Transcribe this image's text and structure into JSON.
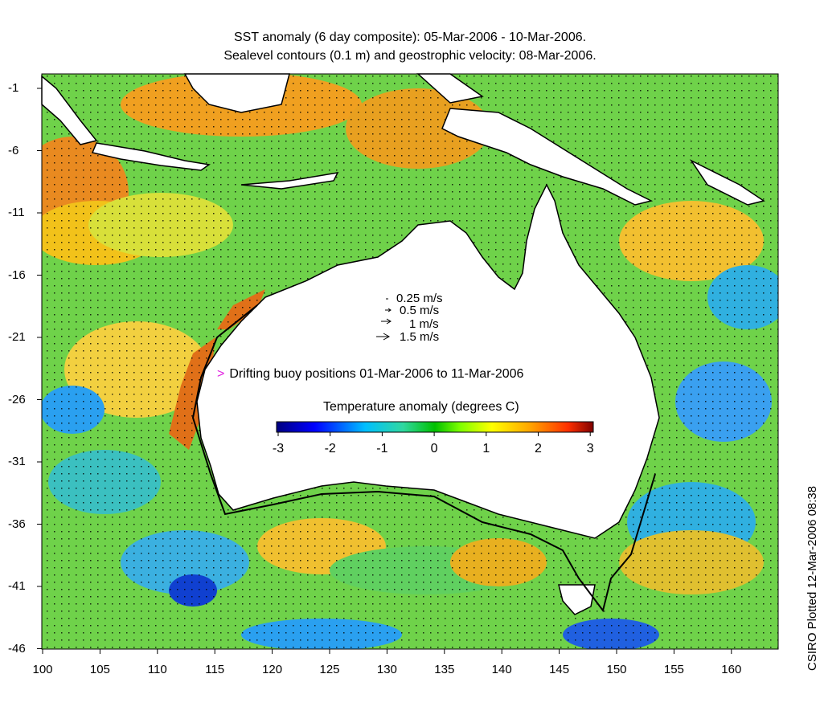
{
  "title_line1": "SST anomaly (6 day composite): 05-Mar-2006 - 10-Mar-2006.",
  "title_line2": "Sealevel contours (0.1 m) and geostrophic velocity: 08-Mar-2006.",
  "y_ticks": [
    "-1",
    "-6",
    "-11",
    "-16",
    "-21",
    "-26",
    "-31",
    "-36",
    "-41",
    "-46"
  ],
  "x_ticks": [
    "100",
    "105",
    "110",
    "115",
    "120",
    "125",
    "130",
    "135",
    "140",
    "145",
    "150",
    "155",
    "160"
  ],
  "velocity_legend": [
    "0.25 m/s",
    "0.5 m/s",
    "1 m/s",
    "1.5 m/s"
  ],
  "buoy_marker": ">",
  "buoy_label": "Drifting buoy positions 01-Mar-2006 to 11-Mar-2006",
  "colorbar_title": "Temperature anomaly (degrees C)",
  "colorbar_ticks": [
    "-3",
    "-2",
    "-1",
    "0",
    "1",
    "2",
    "3"
  ],
  "side_label": "CSIRO Plotted 12-Mar-2006 08:38",
  "colors": {
    "anomaly_scale": [
      "#00007f",
      "#0000ff",
      "#00bfff",
      "#40e0d0",
      "#00c000",
      "#7fff00",
      "#ffff00",
      "#ffa500",
      "#ff4500",
      "#7f0000"
    ],
    "buoy": "#e020e0",
    "land": "#ffffff",
    "coast": "#000000"
  }
}
